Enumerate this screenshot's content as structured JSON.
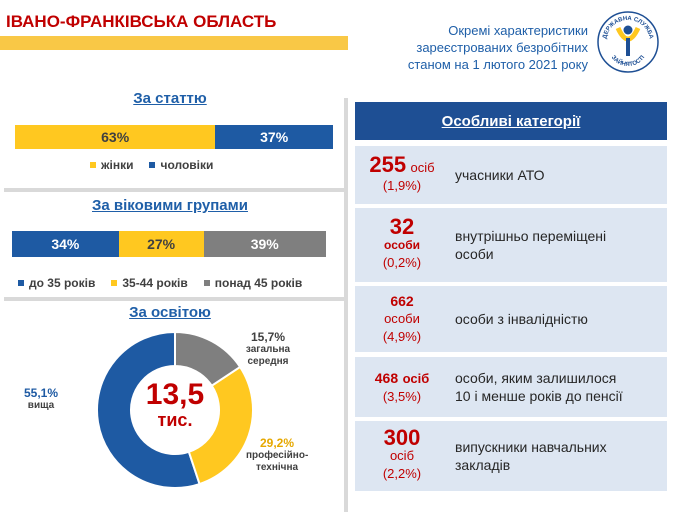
{
  "header": {
    "region": "ІВАНО-ФРАНКІВСЬКА ОБЛАСТЬ",
    "description_lines": [
      "Окремі характеристики",
      "зареєстрованих безробітних",
      "станом на 1 лютого 2021 року"
    ]
  },
  "logo": {
    "icon": "state-employment-service-emblem",
    "text_top": "ДЕРЖАВНА СЛУЖБА",
    "text_bottom": "ЗАЙНЯТОСТІ"
  },
  "sex": {
    "title": "За статтю"
  },
  "age": {
    "title": "За віковими групами"
  },
  "education": {
    "title": "За освітою",
    "total_value": "13,5",
    "total_unit": "тис."
  },
  "categories": {
    "header": "Особливі категорії",
    "rows": [
      {
        "number": "255",
        "unit": "осіб",
        "percent": "(1,9%)",
        "label": "учасники АТО"
      },
      {
        "number": "32",
        "unit": "особи",
        "percent": "(0,2%)",
        "label_lines": [
          "внутрішньо переміщені",
          "особи"
        ]
      },
      {
        "number": "662",
        "unit": "особи",
        "percent": "(4,9%)",
        "label": "особи з інвалідністю"
      },
      {
        "number": "468",
        "unit": "осіб",
        "percent": "(3,5%)",
        "label_lines": [
          "особи, яким залишилося",
          "10 і менше років до пенсії"
        ]
      },
      {
        "number": "300",
        "unit": "осіб",
        "percent": "(2,2%)",
        "label_lines": [
          "випускники навчальних",
          "закладів"
        ]
      }
    ]
  },
  "colors": {
    "yellow": "#ffc820",
    "blue": "#1e5aa3",
    "gray": "#7f7f7f",
    "red": "#c00000",
    "light_blue": "#dde6f2"
  },
  "chart_data": [
    {
      "type": "bar",
      "stacked": true,
      "orientation": "horizontal",
      "title": "За статтю",
      "series": [
        {
          "name": "жінки",
          "value": 63,
          "label": "63%",
          "color": "#ffc820"
        },
        {
          "name": "чоловіки",
          "value": 37,
          "label": "37%",
          "color": "#1e5aa3"
        }
      ]
    },
    {
      "type": "bar",
      "stacked": true,
      "orientation": "horizontal",
      "title": "За віковими групами",
      "series": [
        {
          "name": "до 35 років",
          "value": 34,
          "label": "34%",
          "color": "#1e5aa3"
        },
        {
          "name": "35-44 років",
          "value": 27,
          "label": "27%",
          "color": "#ffc820"
        },
        {
          "name": "понад 45 років",
          "value": 39,
          "label": "39%",
          "color": "#7f7f7f"
        }
      ]
    },
    {
      "type": "pie",
      "donut": true,
      "title": "За освітою",
      "slices": [
        {
          "name": "загальна середня",
          "value": 15.7,
          "label": "15,7%",
          "color": "#7f7f7f"
        },
        {
          "name": "професійно-технічна",
          "value": 29.2,
          "label": "29,2%",
          "color": "#ffc820"
        },
        {
          "name": "вища",
          "value": 55.1,
          "label": "55,1%",
          "color": "#1e5aa3"
        }
      ]
    }
  ]
}
